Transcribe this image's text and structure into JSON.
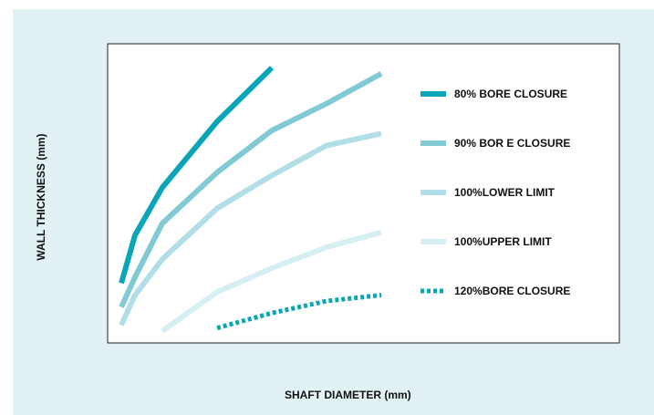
{
  "chart_data": {
    "type": "line",
    "xlabel": "SHAFT DIAMETER (mm)",
    "ylabel": "WALL THICKNESS (mm)",
    "legend_position": "right",
    "grid": false,
    "series": [
      {
        "name": "80% BORE CLOSURE",
        "color": "#0aa6b8",
        "style": "solid",
        "points": [
          [
            0.5,
            0.1
          ],
          [
            1,
            0.26
          ],
          [
            2,
            0.42
          ],
          [
            4,
            0.64
          ],
          [
            6,
            0.82
          ]
        ]
      },
      {
        "name": "90% BOR E CLOSURE",
        "color": "#81c9d3",
        "style": "solid",
        "points": [
          [
            0.5,
            0.02
          ],
          [
            1,
            0.12
          ],
          [
            2,
            0.3
          ],
          [
            4,
            0.47
          ],
          [
            6,
            0.61
          ],
          [
            8,
            0.7
          ],
          [
            10,
            0.8
          ]
        ]
      },
      {
        "name": "100%LOWER LIMIT",
        "color": "#b2dfe7",
        "style": "solid",
        "points": [
          [
            0.5,
            -0.04
          ],
          [
            1,
            0.06
          ],
          [
            2,
            0.18
          ],
          [
            4,
            0.35
          ],
          [
            6,
            0.46
          ],
          [
            8,
            0.56
          ],
          [
            10,
            0.6
          ]
        ]
      },
      {
        "name": "100%UPPER LIMIT",
        "color": "#d6eff3",
        "style": "solid",
        "points": [
          [
            2,
            -0.06
          ],
          [
            4,
            0.07
          ],
          [
            6,
            0.15
          ],
          [
            8,
            0.22
          ],
          [
            10,
            0.27
          ]
        ]
      },
      {
        "name": "120%BORE CLOSURE",
        "color": "#0aa6b8",
        "style": "dotted",
        "points": [
          [
            4,
            -0.05
          ],
          [
            6,
            0.0
          ],
          [
            8,
            0.04
          ],
          [
            10,
            0.06
          ]
        ]
      }
    ]
  }
}
